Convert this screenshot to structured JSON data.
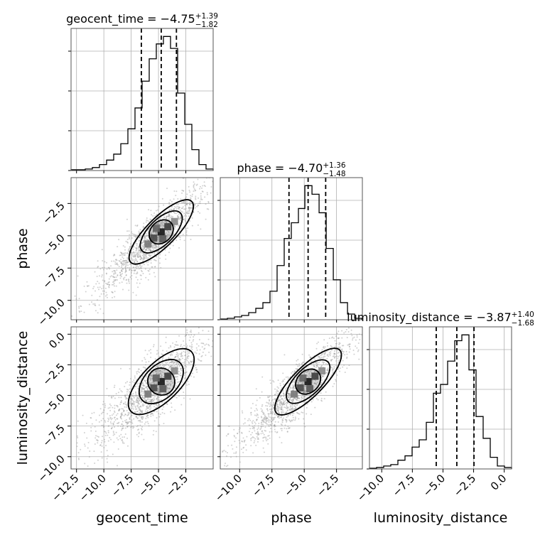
{
  "chart_data": {
    "type": "corner",
    "parameters": [
      "geocent_time",
      "phase",
      "luminosity_distance"
    ],
    "grid": true,
    "axes": {
      "geocent_time": {
        "range": [
          -13.0,
          0.0
        ],
        "ticks": [
          -12.5,
          -10.0,
          -7.5,
          -5.0,
          -2.5
        ],
        "tick_labels": [
          "−12.5",
          "−10.0",
          "−7.5",
          "−5.0",
          "−2.5"
        ],
        "xlabel": "geocent_time"
      },
      "phase": {
        "range": [
          -11.5,
          -0.5
        ],
        "ticks": [
          -10.0,
          -7.5,
          -5.0,
          -2.5
        ],
        "tick_labels": [
          "−10.0",
          "−7.5",
          "−5.0",
          "−2.5"
        ],
        "xlabel": "phase",
        "ylabel": "phase"
      },
      "luminosity_distance": {
        "range": [
          -11.0,
          0.6
        ],
        "ticks": [
          -10.0,
          -7.5,
          -5.0,
          -2.5,
          0.0
        ],
        "tick_labels": [
          "−10.0",
          "−7.5",
          "−5.0",
          "−2.5",
          "0.0"
        ],
        "xlabel": "luminosity_distance",
        "ylabel": "luminosity_distance"
      }
    },
    "marginals": [
      {
        "parameter": "geocent_time",
        "title": "geocent_time = −4.75",
        "err_plus": "+1.39",
        "err_minus": "−1.82",
        "quantiles": [
          -6.57,
          -4.75,
          -3.36
        ],
        "bin_edges": [
          -13.0,
          -12.35,
          -11.7,
          -11.05,
          -10.4,
          -9.75,
          -9.1,
          -8.45,
          -7.8,
          -7.15,
          -6.5,
          -5.85,
          -5.2,
          -4.55,
          -3.9,
          -3.25,
          -2.6,
          -1.95,
          -1.3,
          -0.65,
          0.0
        ],
        "counts": [
          0.5,
          0.5,
          1,
          2,
          4,
          7,
          11,
          18,
          28,
          42,
          60,
          75,
          85,
          90,
          82,
          52,
          31,
          14,
          4,
          1
        ]
      },
      {
        "parameter": "phase",
        "title": "phase = −4.70",
        "err_plus": "+1.36",
        "err_minus": "−1.48",
        "quantiles": [
          -6.18,
          -4.7,
          -3.34
        ],
        "bin_edges": [
          -11.5,
          -10.95,
          -10.4,
          -9.85,
          -9.3,
          -8.75,
          -8.2,
          -7.65,
          -7.1,
          -6.55,
          -6.0,
          -5.45,
          -4.95,
          -4.4,
          -3.85,
          -3.3,
          -2.75,
          -2.2,
          -1.65,
          -1.1,
          -0.55
        ],
        "counts": [
          0.5,
          1,
          2,
          3,
          5,
          8,
          12,
          20,
          38,
          57,
          68,
          78,
          94,
          88,
          75,
          50,
          28,
          12,
          4,
          1
        ]
      },
      {
        "parameter": "luminosity_distance",
        "title": "luminosity_distance = −3.87",
        "err_plus": "+1.40",
        "err_minus": "−1.68",
        "quantiles": [
          -5.55,
          -3.87,
          -2.47
        ],
        "bin_edges": [
          -11.0,
          -10.42,
          -9.84,
          -9.26,
          -8.68,
          -8.1,
          -7.52,
          -6.94,
          -6.36,
          -5.78,
          -5.2,
          -4.62,
          -4.04,
          -3.46,
          -2.88,
          -2.3,
          -1.72,
          -1.14,
          -0.56,
          0.02,
          0.6
        ],
        "counts": [
          0.5,
          1,
          2,
          3,
          6,
          9,
          15,
          20,
          32,
          52,
          58,
          74,
          88,
          92,
          68,
          36,
          21,
          8,
          2,
          1
        ]
      }
    ],
    "joints": [
      {
        "x": "geocent_time",
        "y": "phase",
        "rho": 0.85
      },
      {
        "x": "geocent_time",
        "y": "luminosity_distance",
        "rho": 0.75
      },
      {
        "x": "phase",
        "y": "luminosity_distance",
        "rho": 0.85
      }
    ],
    "colors": {
      "line": "#000000",
      "grid": "#b0b0b0",
      "scatter": "#9a9a9a",
      "frame": "#555555"
    }
  }
}
